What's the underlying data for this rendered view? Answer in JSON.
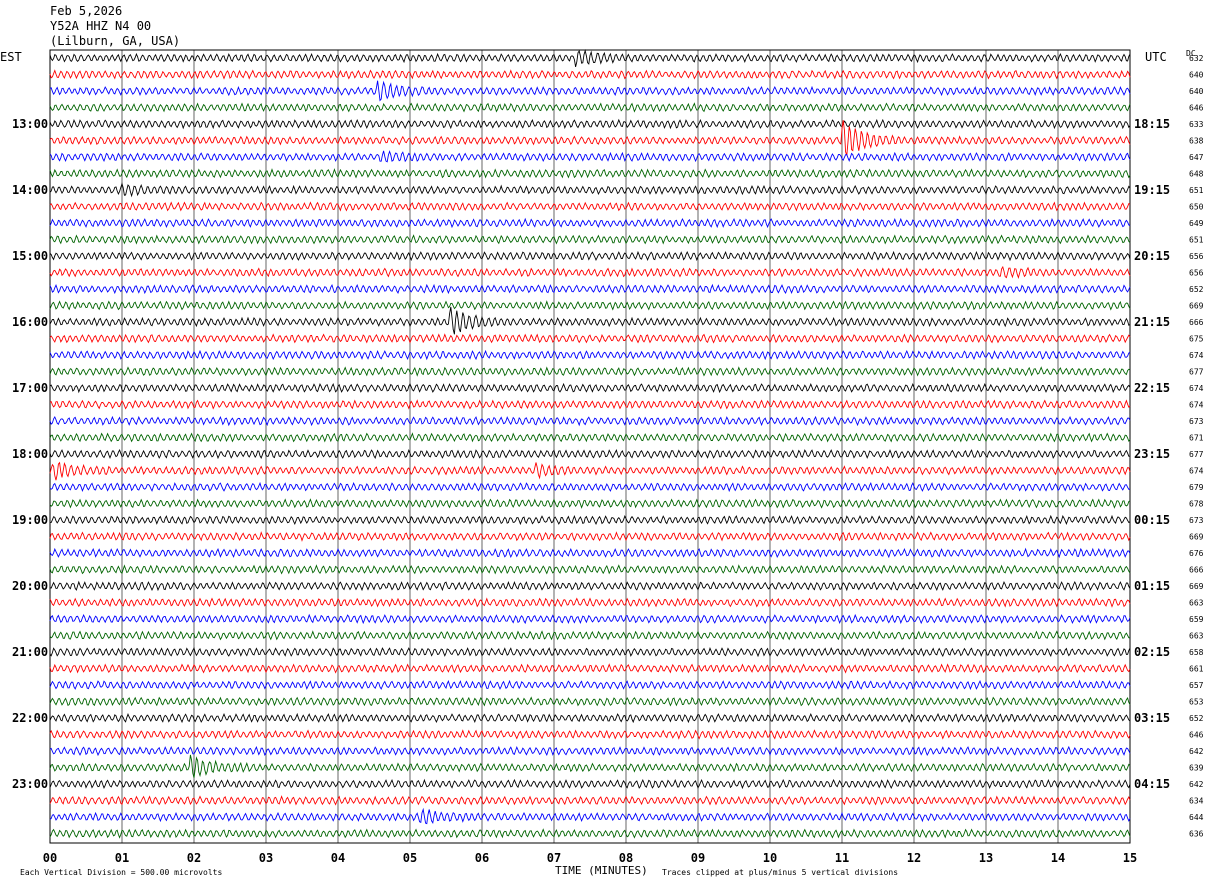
{
  "header": {
    "date": "Feb 5,2026",
    "station": "Y52A HHZ N4 00",
    "location": "(Lilburn, GA, USA)"
  },
  "left_axis_label": "EST",
  "right_axis_label": "UTC",
  "dc_label": "DC",
  "footer": {
    "scale_note": "Each Vertical Division =  500.00 microvolts",
    "xlabel": "TIME (MINUTES)",
    "clip_note": "Traces clipped at plus/minus 5 vertical divisions"
  },
  "chart_data": {
    "type": "line",
    "title": "Y52A HHZ N4 00",
    "xlabel": "TIME (MINUTES)",
    "xlim": [
      0,
      15
    ],
    "x_ticks": [
      "00",
      "01",
      "02",
      "03",
      "04",
      "05",
      "06",
      "07",
      "08",
      "09",
      "10",
      "11",
      "12",
      "13",
      "14",
      "15"
    ],
    "trace_colors": [
      "#000000",
      "#ff0000",
      "#0000ff",
      "#006400"
    ],
    "est_labels": [
      {
        "row": 4,
        "text": "13:00"
      },
      {
        "row": 8,
        "text": "14:00"
      },
      {
        "row": 12,
        "text": "15:00"
      },
      {
        "row": 16,
        "text": "16:00"
      },
      {
        "row": 20,
        "text": "17:00"
      },
      {
        "row": 24,
        "text": "18:00"
      },
      {
        "row": 28,
        "text": "19:00"
      },
      {
        "row": 32,
        "text": "20:00"
      },
      {
        "row": 36,
        "text": "21:00"
      },
      {
        "row": 40,
        "text": "22:00"
      },
      {
        "row": 44,
        "text": "23:00"
      }
    ],
    "utc_labels": [
      {
        "row": 4,
        "text": "18:15"
      },
      {
        "row": 8,
        "text": "19:15"
      },
      {
        "row": 12,
        "text": "20:15"
      },
      {
        "row": 16,
        "text": "21:15"
      },
      {
        "row": 20,
        "text": "22:15"
      },
      {
        "row": 24,
        "text": "23:15"
      },
      {
        "row": 28,
        "text": "00:15"
      },
      {
        "row": 32,
        "text": "01:15"
      },
      {
        "row": 36,
        "text": "02:15"
      },
      {
        "row": 40,
        "text": "03:15"
      },
      {
        "row": 44,
        "text": "04:15"
      }
    ],
    "dc_offsets": [
      632,
      640,
      640,
      646,
      633,
      638,
      647,
      648,
      651,
      650,
      649,
      651,
      656,
      656,
      652,
      669,
      666,
      675,
      674,
      677,
      674,
      674,
      673,
      671,
      677,
      674,
      679,
      678,
      673,
      669,
      676,
      666,
      669,
      663,
      659,
      663,
      658,
      661,
      657,
      653,
      652,
      646,
      642,
      639,
      642,
      634,
      644,
      636
    ],
    "events": [
      {
        "row": 0,
        "minute": 7.3,
        "amp": 1.0
      },
      {
        "row": 2,
        "minute": 4.55,
        "amp": 1.3
      },
      {
        "row": 5,
        "minute": 11.0,
        "amp": 3.0
      },
      {
        "row": 6,
        "minute": 4.6,
        "amp": 0.6
      },
      {
        "row": 8,
        "minute": 1.0,
        "amp": 0.6
      },
      {
        "row": 13,
        "minute": 13.2,
        "amp": 0.6
      },
      {
        "row": 16,
        "minute": 5.55,
        "amp": 2.0
      },
      {
        "row": 25,
        "minute": 0.05,
        "amp": 1.2
      },
      {
        "row": 25,
        "minute": 6.75,
        "amp": 0.7
      },
      {
        "row": 43,
        "minute": 1.95,
        "amp": 1.6
      },
      {
        "row": 46,
        "minute": 5.15,
        "amp": 1.0
      }
    ]
  }
}
